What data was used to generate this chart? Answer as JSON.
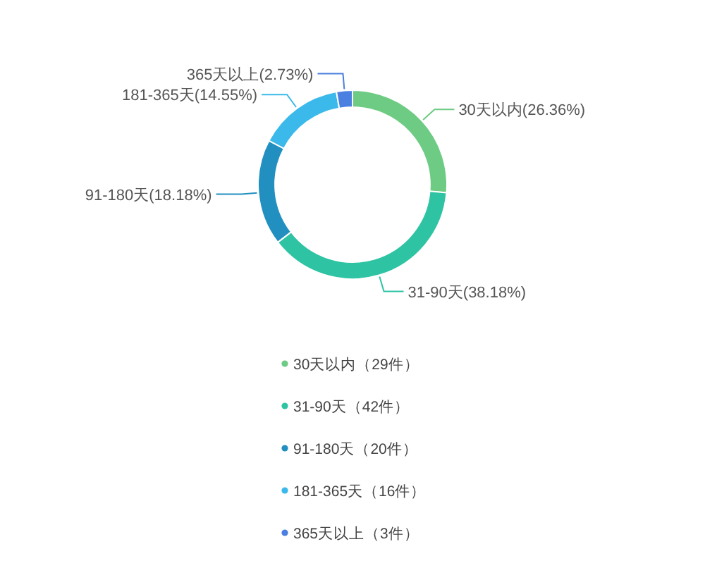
{
  "chart_data": {
    "type": "donut",
    "categories": [
      "30天以内（29件）",
      "31-90天（42件）",
      "91-180天（20件）",
      "181-365天（16件）",
      "365天以上（3件）"
    ],
    "values": [
      26.36,
      38.18,
      18.18,
      14.55,
      2.73
    ],
    "colors": [
      "#6dcb83",
      "#2ec3a3",
      "#2190c0",
      "#3bb9ea",
      "#4b7fe0"
    ],
    "value_labels": [
      "30天以内(26.36%)",
      "31-90天(38.18%)",
      "91-180天(18.18%)",
      "181-365天(14.55%)",
      "365天以上(2.73%)"
    ],
    "legend": "bottom"
  }
}
